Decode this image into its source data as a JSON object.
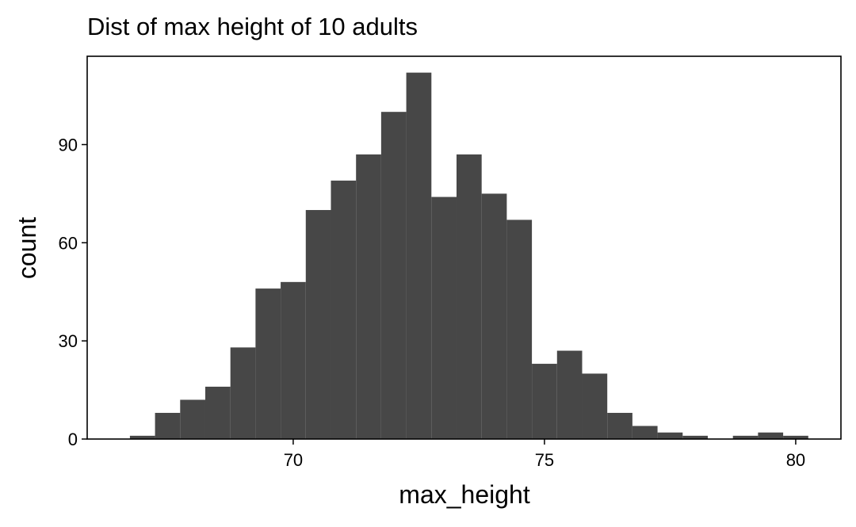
{
  "chart_data": {
    "type": "bar",
    "title": "Dist of max height of 10 adults",
    "xlabel": "max_height",
    "ylabel": "count",
    "bin_width": 0.5,
    "bins": [
      {
        "x_start": 66.75,
        "x_end": 67.25,
        "count": 1
      },
      {
        "x_start": 67.25,
        "x_end": 67.75,
        "count": 8
      },
      {
        "x_start": 67.75,
        "x_end": 68.25,
        "count": 12
      },
      {
        "x_start": 68.25,
        "x_end": 68.75,
        "count": 16
      },
      {
        "x_start": 68.75,
        "x_end": 69.25,
        "count": 28
      },
      {
        "x_start": 69.25,
        "x_end": 69.75,
        "count": 46
      },
      {
        "x_start": 69.75,
        "x_end": 70.25,
        "count": 48
      },
      {
        "x_start": 70.25,
        "x_end": 70.75,
        "count": 70
      },
      {
        "x_start": 70.75,
        "x_end": 71.25,
        "count": 79
      },
      {
        "x_start": 71.25,
        "x_end": 71.75,
        "count": 87
      },
      {
        "x_start": 71.75,
        "x_end": 72.25,
        "count": 100
      },
      {
        "x_start": 72.25,
        "x_end": 72.75,
        "count": 112
      },
      {
        "x_start": 72.75,
        "x_end": 73.25,
        "count": 74
      },
      {
        "x_start": 73.25,
        "x_end": 73.75,
        "count": 87
      },
      {
        "x_start": 73.75,
        "x_end": 74.25,
        "count": 75
      },
      {
        "x_start": 74.25,
        "x_end": 74.75,
        "count": 67
      },
      {
        "x_start": 74.75,
        "x_end": 75.25,
        "count": 23
      },
      {
        "x_start": 75.25,
        "x_end": 75.75,
        "count": 27
      },
      {
        "x_start": 75.75,
        "x_end": 76.25,
        "count": 20
      },
      {
        "x_start": 76.25,
        "x_end": 76.75,
        "count": 8
      },
      {
        "x_start": 76.75,
        "x_end": 77.25,
        "count": 4
      },
      {
        "x_start": 77.25,
        "x_end": 77.75,
        "count": 2
      },
      {
        "x_start": 77.75,
        "x_end": 78.25,
        "count": 1
      },
      {
        "x_start": 78.25,
        "x_end": 78.75,
        "count": 0
      },
      {
        "x_start": 78.75,
        "x_end": 79.25,
        "count": 1
      },
      {
        "x_start": 79.25,
        "x_end": 79.75,
        "count": 2
      },
      {
        "x_start": 79.75,
        "x_end": 80.25,
        "count": 1
      }
    ],
    "xlim": [
      65.9,
      80.9
    ],
    "ylim": [
      0,
      117
    ],
    "x_ticks": [
      70,
      75,
      80
    ],
    "y_ticks": [
      0,
      30,
      60,
      90
    ],
    "grid": false,
    "bar_color": "#474747",
    "frame_color": "#000000",
    "background": "#ffffff"
  }
}
